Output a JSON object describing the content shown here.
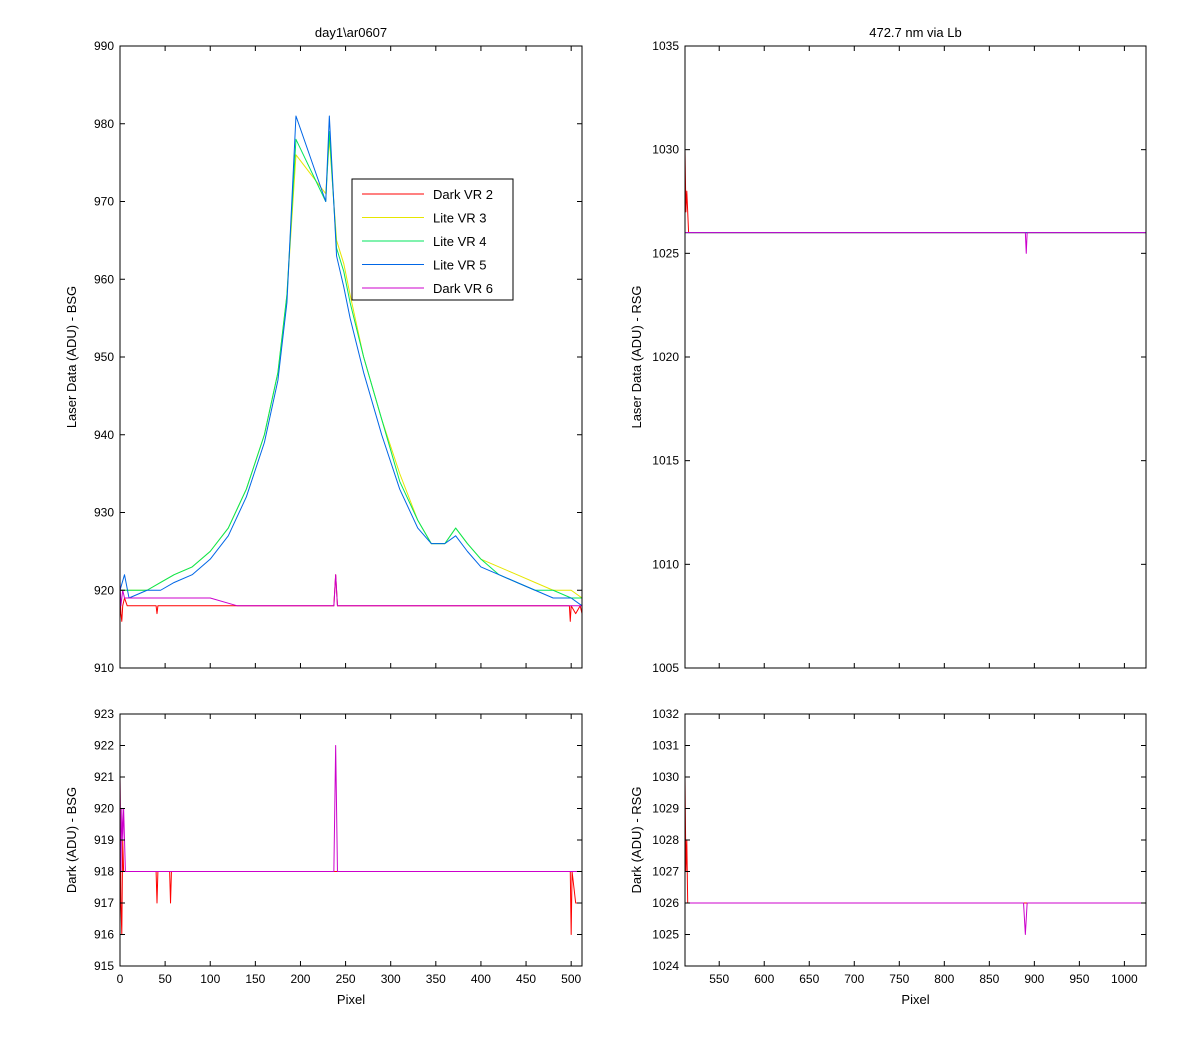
{
  "colors": {
    "dark_vr2": "#ff0000",
    "lite_vr3": "#e6e600",
    "lite_vr4": "#00e65c",
    "lite_vr5": "#0066e6",
    "dark_vr6": "#cc00cc"
  },
  "chart_data": [
    {
      "id": "bsg-laser",
      "type": "line",
      "title": "day1\\ar0607",
      "xlabel": "",
      "ylabel": "Laser Data (ADU) - BSG",
      "xlim": [
        0,
        512
      ],
      "ylim": [
        910,
        990
      ],
      "xticks": [
        0,
        50,
        100,
        150,
        200,
        250,
        300,
        350,
        400,
        450,
        500
      ],
      "yticks": [
        910,
        920,
        930,
        940,
        950,
        960,
        970,
        980,
        990
      ],
      "show_xtick_labels": false,
      "legend": {
        "position": "upper-right-inside",
        "entries": [
          "Dark VR 2",
          "Lite VR 3",
          "Lite VR 4",
          "Lite VR 5",
          "Dark VR 6"
        ]
      },
      "series": [
        {
          "name": "Dark VR 2",
          "color_key": "dark_vr2",
          "x": [
            0,
            1,
            2,
            3,
            5,
            8,
            12,
            20,
            40,
            41,
            42,
            60,
            100,
            150,
            200,
            237,
            238,
            239,
            240,
            241,
            300,
            400,
            498,
            499,
            500,
            505,
            510,
            512
          ],
          "y": [
            920,
            917,
            916,
            918,
            919,
            918,
            918,
            918,
            918,
            917,
            918,
            918,
            918,
            918,
            918,
            918,
            920,
            922,
            920,
            918,
            918,
            918,
            918,
            916,
            918,
            917,
            918,
            917
          ]
        },
        {
          "name": "Lite VR 3",
          "color_key": "lite_vr3",
          "x": [
            0,
            10,
            30,
            45,
            60,
            80,
            100,
            120,
            140,
            160,
            175,
            185,
            195,
            228,
            232,
            240,
            248,
            255,
            270,
            290,
            310,
            330,
            345,
            360,
            372,
            385,
            400,
            420,
            440,
            460,
            480,
            500,
            512
          ],
          "y": [
            920,
            920,
            920,
            921,
            922,
            923,
            925,
            928,
            933,
            940,
            948,
            958,
            976,
            971,
            978,
            965,
            962,
            958,
            950,
            942,
            935,
            929,
            926,
            926,
            928,
            926,
            924,
            923,
            922,
            921,
            920,
            920,
            919
          ]
        },
        {
          "name": "Lite VR 4",
          "color_key": "lite_vr4",
          "x": [
            0,
            10,
            30,
            45,
            60,
            80,
            100,
            120,
            140,
            160,
            175,
            185,
            195,
            228,
            232,
            240,
            248,
            255,
            270,
            290,
            310,
            330,
            345,
            360,
            372,
            385,
            400,
            420,
            440,
            460,
            480,
            500,
            512
          ],
          "y": [
            920,
            920,
            920,
            921,
            922,
            923,
            925,
            928,
            933,
            940,
            948,
            958,
            978,
            970,
            979,
            964,
            961,
            957,
            950,
            942,
            934,
            929,
            926,
            926,
            928,
            926,
            924,
            922,
            921,
            920,
            920,
            919,
            919
          ]
        },
        {
          "name": "Lite VR 5",
          "color_key": "lite_vr5",
          "x": [
            0,
            5,
            10,
            30,
            45,
            60,
            80,
            100,
            120,
            140,
            160,
            175,
            185,
            195,
            228,
            232,
            240,
            248,
            255,
            270,
            290,
            310,
            330,
            345,
            360,
            372,
            385,
            400,
            420,
            440,
            460,
            480,
            500,
            512
          ],
          "y": [
            920,
            922,
            919,
            920,
            920,
            921,
            922,
            924,
            927,
            932,
            939,
            947,
            957,
            981,
            970,
            981,
            963,
            959,
            955,
            948,
            940,
            933,
            928,
            926,
            926,
            927,
            925,
            923,
            922,
            921,
            920,
            919,
            919,
            918
          ]
        },
        {
          "name": "Dark VR 6",
          "color_key": "dark_vr6",
          "x": [
            0,
            1,
            3,
            5,
            8,
            12,
            20,
            60,
            100,
            130,
            150,
            200,
            237,
            238,
            239,
            240,
            241,
            300,
            400,
            500,
            512
          ],
          "y": [
            921,
            918,
            920,
            919,
            919,
            919,
            919,
            919,
            919,
            918,
            918,
            918,
            918,
            920,
            922,
            920,
            918,
            918,
            918,
            918,
            918
          ]
        }
      ]
    },
    {
      "id": "rsg-laser",
      "type": "line",
      "title": "472.7 nm via Lb",
      "xlabel": "",
      "ylabel": "Laser Data (ADU) - RSG",
      "xlim": [
        512,
        1024
      ],
      "ylim": [
        1005,
        1035
      ],
      "xticks": [
        550,
        600,
        650,
        700,
        750,
        800,
        850,
        900,
        950,
        1000
      ],
      "yticks": [
        1005,
        1010,
        1015,
        1020,
        1025,
        1030,
        1035
      ],
      "show_xtick_labels": false,
      "series": [
        {
          "name": "Dark VR 2",
          "color_key": "dark_vr2",
          "x": [
            512,
            513,
            514,
            516,
            1024
          ],
          "y": [
            1030,
            1027,
            1028,
            1026,
            1026
          ]
        },
        {
          "name": "Lite VR 3",
          "color_key": "lite_vr3",
          "x": [
            512,
            1024
          ],
          "y": [
            1026,
            1026
          ]
        },
        {
          "name": "Lite VR 4",
          "color_key": "lite_vr4",
          "x": [
            512,
            1024
          ],
          "y": [
            1026,
            1026
          ]
        },
        {
          "name": "Lite VR 5",
          "color_key": "lite_vr5",
          "x": [
            512,
            1024
          ],
          "y": [
            1026,
            1026
          ]
        },
        {
          "name": "Dark VR 6",
          "color_key": "dark_vr6",
          "x": [
            512,
            890,
            891,
            892,
            893,
            1024
          ],
          "y": [
            1026,
            1026,
            1025,
            1026,
            1026,
            1026
          ]
        }
      ]
    },
    {
      "id": "bsg-dark",
      "type": "line",
      "title": "",
      "xlabel": "Pixel",
      "ylabel": "Dark (ADU) - BSG",
      "xlim": [
        0,
        512
      ],
      "ylim": [
        915,
        923
      ],
      "xticks": [
        0,
        50,
        100,
        150,
        200,
        250,
        300,
        350,
        400,
        450,
        500
      ],
      "yticks": [
        915,
        916,
        917,
        918,
        919,
        920,
        921,
        922,
        923
      ],
      "show_xtick_labels": true,
      "series": [
        {
          "name": "Dark VR 2",
          "color_key": "dark_vr2",
          "x": [
            0,
            1,
            2,
            3,
            4,
            5,
            40,
            41,
            42,
            55,
            56,
            57,
            100,
            499,
            500,
            501,
            505,
            512
          ],
          "y": [
            921,
            917,
            916,
            919,
            918,
            918,
            918,
            917,
            918,
            918,
            917,
            918,
            918,
            918,
            916,
            918,
            917,
            917
          ]
        },
        {
          "name": "Dark VR 6",
          "color_key": "dark_vr6",
          "x": [
            0,
            1,
            2,
            3,
            4,
            5,
            6,
            237,
            238,
            239,
            240,
            241,
            242,
            512
          ],
          "y": [
            921,
            918,
            920,
            919,
            920,
            919,
            918,
            918,
            920,
            922,
            920,
            918,
            918,
            918
          ]
        }
      ]
    },
    {
      "id": "rsg-dark",
      "type": "line",
      "title": "",
      "xlabel": "Pixel",
      "ylabel": "Dark (ADU) - RSG",
      "xlim": [
        512,
        1024
      ],
      "ylim": [
        1024,
        1032
      ],
      "xticks": [
        550,
        600,
        650,
        700,
        750,
        800,
        850,
        900,
        950,
        1000
      ],
      "yticks": [
        1024,
        1025,
        1026,
        1027,
        1028,
        1029,
        1030,
        1031,
        1032
      ],
      "show_xtick_labels": true,
      "series": [
        {
          "name": "Dark VR 2",
          "color_key": "dark_vr2",
          "x": [
            512,
            513,
            514,
            515,
            517,
            1024
          ],
          "y": [
            1030,
            1027,
            1028,
            1026,
            1026,
            1026
          ]
        },
        {
          "name": "Dark VR 6",
          "color_key": "dark_vr6",
          "x": [
            512,
            888,
            889,
            890,
            891,
            892,
            1024
          ],
          "y": [
            1026,
            1026,
            1025.5,
            1025,
            1025.5,
            1026,
            1026
          ]
        }
      ]
    }
  ]
}
